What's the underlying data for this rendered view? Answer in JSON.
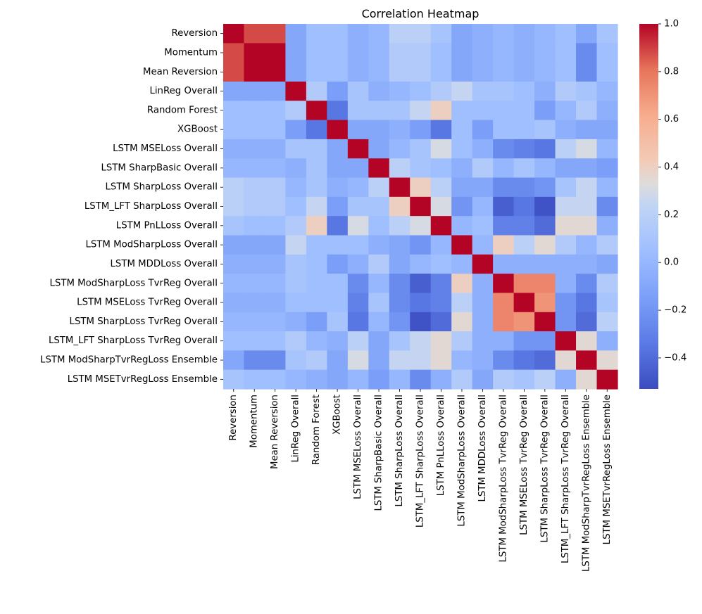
{
  "chart_data": {
    "type": "heatmap",
    "title": "Correlation Heatmap",
    "labels": [
      "Reversion",
      "Momentum",
      "Mean Reversion",
      "LinReg Overall",
      "Random Forest",
      "XGBoost",
      "LSTM MSELoss Overall",
      "LSTM SharpBasic Overall",
      "LSTM SharpLoss Overall",
      "LSTM_LFT SharpLoss Overall",
      "LSTM PnLLoss Overall",
      "LSTM ModSharpLoss Overall",
      "LSTM MDDLoss Overall",
      "LSTM ModSharpLoss TvrReg Overall",
      "LSTM MSELoss TvrReg Overall",
      "LSTM SharpLoss TvrReg Overall",
      "LSTM_LFT SharpLoss TvrReg Overall",
      "LSTM ModSharpTvrRegLoss Ensemble",
      "LSTM MSETvrRegLoss Ensemble"
    ],
    "matrix": [
      [
        1.0,
        0.88,
        0.88,
        -0.1,
        0.05,
        0.05,
        -0.05,
        0.0,
        0.2,
        0.2,
        0.1,
        -0.1,
        -0.05,
        0.0,
        -0.05,
        0.0,
        0.05,
        -0.1,
        0.1
      ],
      [
        0.88,
        1.0,
        1.0,
        -0.1,
        0.05,
        0.05,
        -0.05,
        0.0,
        0.15,
        0.15,
        0.05,
        -0.1,
        -0.05,
        0.0,
        -0.05,
        0.0,
        0.05,
        -0.25,
        0.05
      ],
      [
        0.88,
        1.0,
        1.0,
        -0.1,
        0.05,
        0.05,
        -0.05,
        0.0,
        0.15,
        0.15,
        0.05,
        -0.1,
        -0.05,
        0.0,
        -0.05,
        0.0,
        0.05,
        -0.25,
        0.05
      ],
      [
        -0.1,
        -0.1,
        -0.1,
        1.0,
        0.15,
        -0.15,
        0.1,
        -0.05,
        0.0,
        0.05,
        0.15,
        0.25,
        0.1,
        0.1,
        0.05,
        -0.05,
        0.15,
        0.1,
        0.0
      ],
      [
        0.05,
        0.05,
        0.05,
        0.15,
        1.0,
        -0.35,
        0.1,
        0.1,
        0.1,
        0.25,
        0.4,
        0.05,
        0.05,
        0.05,
        0.05,
        -0.15,
        0.0,
        0.15,
        -0.05
      ],
      [
        0.05,
        0.05,
        0.05,
        -0.15,
        -0.35,
        1.0,
        -0.1,
        -0.1,
        -0.05,
        -0.15,
        -0.35,
        0.05,
        -0.15,
        0.05,
        0.05,
        0.1,
        -0.05,
        -0.1,
        -0.1
      ],
      [
        -0.05,
        -0.05,
        -0.05,
        0.1,
        0.1,
        -0.1,
        1.0,
        -0.1,
        0.0,
        0.1,
        0.3,
        0.05,
        -0.05,
        -0.25,
        -0.3,
        -0.35,
        0.2,
        0.3,
        0.0
      ],
      [
        0.0,
        0.0,
        0.0,
        -0.05,
        0.1,
        -0.1,
        -0.1,
        1.0,
        0.2,
        0.1,
        0.05,
        -0.05,
        0.15,
        0.0,
        0.1,
        0.0,
        -0.1,
        -0.1,
        -0.15
      ],
      [
        0.2,
        0.15,
        0.15,
        0.0,
        0.1,
        -0.05,
        0.0,
        0.2,
        1.0,
        0.4,
        0.2,
        -0.1,
        -0.1,
        -0.25,
        -0.25,
        -0.2,
        0.1,
        0.25,
        0.0
      ],
      [
        0.2,
        0.15,
        0.15,
        0.05,
        0.25,
        -0.15,
        0.1,
        0.1,
        0.4,
        1.0,
        0.3,
        -0.2,
        0.0,
        -0.45,
        -0.35,
        -0.5,
        0.25,
        0.25,
        -0.25
      ],
      [
        0.1,
        0.05,
        0.05,
        0.15,
        0.4,
        -0.35,
        0.3,
        0.05,
        0.2,
        0.3,
        1.0,
        0.0,
        0.05,
        -0.3,
        -0.3,
        -0.4,
        0.35,
        0.35,
        -0.05
      ],
      [
        -0.1,
        -0.1,
        -0.1,
        0.25,
        0.05,
        0.05,
        0.05,
        -0.05,
        -0.1,
        -0.2,
        0.0,
        1.0,
        0.0,
        0.4,
        0.2,
        0.35,
        0.15,
        0.0,
        0.15
      ],
      [
        -0.05,
        -0.05,
        -0.05,
        0.1,
        0.05,
        -0.15,
        -0.05,
        0.15,
        -0.1,
        0.0,
        0.05,
        0.0,
        1.0,
        -0.05,
        -0.05,
        -0.05,
        -0.05,
        -0.05,
        -0.1
      ],
      [
        0.0,
        0.0,
        0.0,
        0.1,
        0.05,
        0.05,
        -0.25,
        0.0,
        -0.25,
        -0.45,
        -0.3,
        0.4,
        -0.05,
        1.0,
        0.75,
        0.75,
        -0.05,
        -0.25,
        0.15
      ],
      [
        -0.05,
        -0.05,
        -0.05,
        0.05,
        0.05,
        0.05,
        -0.3,
        0.1,
        -0.25,
        -0.35,
        -0.3,
        0.2,
        -0.05,
        0.75,
        1.0,
        0.7,
        -0.2,
        -0.35,
        0.1
      ],
      [
        0.0,
        0.0,
        0.0,
        -0.05,
        -0.15,
        0.1,
        -0.35,
        0.0,
        -0.2,
        -0.5,
        -0.4,
        0.35,
        -0.05,
        0.75,
        0.7,
        1.0,
        -0.2,
        -0.4,
        0.2
      ],
      [
        0.05,
        0.05,
        0.05,
        0.15,
        0.0,
        -0.05,
        0.2,
        -0.1,
        0.1,
        0.25,
        0.35,
        0.15,
        -0.05,
        -0.05,
        -0.2,
        -0.2,
        1.0,
        0.35,
        -0.05
      ],
      [
        -0.1,
        -0.25,
        -0.25,
        0.1,
        0.15,
        -0.1,
        0.3,
        -0.1,
        0.25,
        0.25,
        0.35,
        0.0,
        -0.05,
        -0.25,
        -0.35,
        -0.4,
        0.35,
        1.0,
        0.35
      ],
      [
        0.1,
        0.05,
        0.05,
        0.0,
        -0.05,
        -0.1,
        0.0,
        -0.15,
        0.0,
        -0.25,
        -0.05,
        0.15,
        -0.1,
        0.15,
        0.1,
        0.2,
        -0.05,
        0.35,
        1.0
      ]
    ],
    "colormap": "coolwarm",
    "vmin": -0.53,
    "vmax": 1.0,
    "colorbar_ticks": [
      1.0,
      0.8,
      0.6,
      0.4,
      0.2,
      0.0,
      -0.2,
      -0.4
    ],
    "colorbar_tick_labels": [
      "1.0",
      "0.8",
      "0.6",
      "0.4",
      "0.2",
      "0.0",
      "−0.2",
      "−0.4"
    ]
  }
}
